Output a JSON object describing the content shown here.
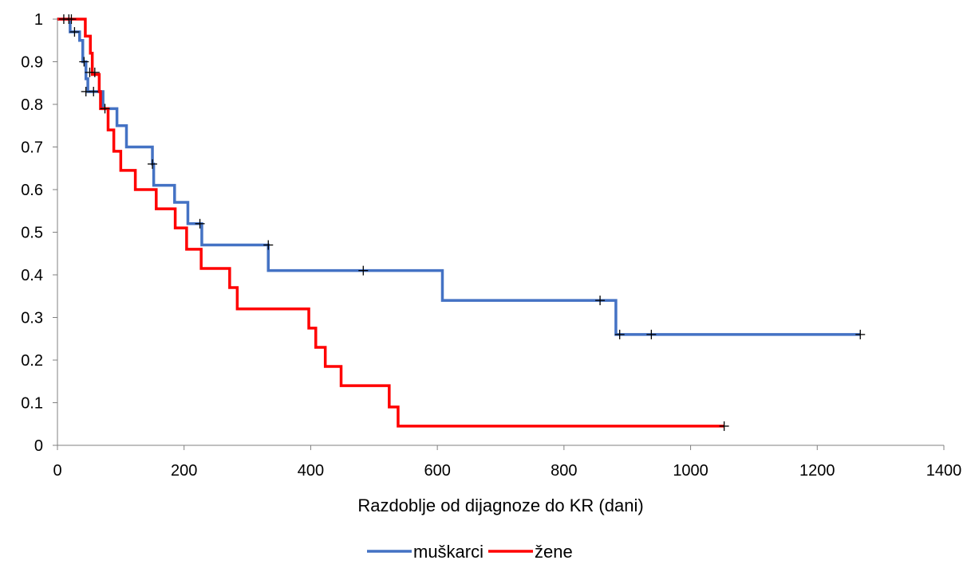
{
  "chart_data": {
    "type": "line",
    "step": true,
    "xlabel": "Razdoblje od dijagnoze do KR (dani)",
    "ylabel": "",
    "xlim": [
      0,
      1400
    ],
    "ylim": [
      0,
      1
    ],
    "xticks": [
      0,
      200,
      400,
      600,
      800,
      1000,
      1200,
      1400
    ],
    "yticks": [
      0,
      0.1,
      0.2,
      0.3,
      0.4,
      0.5,
      0.6,
      0.7,
      0.8,
      0.9,
      1
    ],
    "xtick_labels": [
      "0",
      "200",
      "400",
      "600",
      "800",
      "1000",
      "1200",
      "1400"
    ],
    "ytick_labels": [
      "0",
      "0.1",
      "0.2",
      "0.3",
      "0.4",
      "0.5",
      "0.6",
      "0.7",
      "0.8",
      "0.9",
      "1"
    ],
    "grid": false,
    "legend_position": "bottom",
    "series": [
      {
        "name": "muškarci",
        "color": "#4472C4",
        "steps": [
          [
            0,
            1
          ],
          [
            20,
            0.97
          ],
          [
            35,
            0.95
          ],
          [
            40,
            0.9
          ],
          [
            45,
            0.86
          ],
          [
            48,
            0.83
          ],
          [
            57,
            0.83
          ],
          [
            70,
            0.83
          ],
          [
            72,
            0.79
          ],
          [
            92,
            0.79
          ],
          [
            94,
            0.75
          ],
          [
            107,
            0.75
          ],
          [
            109,
            0.7
          ],
          [
            148,
            0.7
          ],
          [
            150,
            0.66
          ],
          [
            152,
            0.61
          ],
          [
            183,
            0.61
          ],
          [
            185,
            0.57
          ],
          [
            204,
            0.57
          ],
          [
            206,
            0.52
          ],
          [
            226,
            0.52
          ],
          [
            228,
            0.47
          ],
          [
            331,
            0.47
          ],
          [
            333,
            0.41
          ],
          [
            606,
            0.41
          ],
          [
            608,
            0.34
          ],
          [
            880,
            0.34
          ],
          [
            882,
            0.26
          ],
          [
            1268,
            0.26
          ]
        ],
        "censored": [
          [
            10,
            1
          ],
          [
            18,
            1
          ],
          [
            22,
            1
          ],
          [
            27,
            0.97
          ],
          [
            42,
            0.9
          ],
          [
            45,
            0.83
          ],
          [
            51,
            0.875
          ],
          [
            59,
            0.875
          ],
          [
            57,
            0.83
          ],
          [
            75,
            0.79
          ],
          [
            150,
            0.66
          ],
          [
            225,
            0.52
          ],
          [
            333,
            0.47
          ],
          [
            483,
            0.41
          ],
          [
            857,
            0.34
          ],
          [
            888,
            0.26
          ],
          [
            938,
            0.26
          ],
          [
            1268,
            0.26
          ]
        ]
      },
      {
        "name": "žene",
        "color": "#FF0000",
        "steps": [
          [
            0,
            1
          ],
          [
            42,
            1
          ],
          [
            44,
            0.96
          ],
          [
            50,
            0.96
          ],
          [
            52,
            0.92
          ],
          [
            55,
            0.87
          ],
          [
            64,
            0.87
          ],
          [
            66,
            0.83
          ],
          [
            68,
            0.79
          ],
          [
            78,
            0.79
          ],
          [
            80,
            0.74
          ],
          [
            87,
            0.74
          ],
          [
            89,
            0.69
          ],
          [
            98,
            0.69
          ],
          [
            100,
            0.645
          ],
          [
            121,
            0.645
          ],
          [
            123,
            0.6
          ],
          [
            154,
            0.6
          ],
          [
            156,
            0.555
          ],
          [
            184,
            0.555
          ],
          [
            186,
            0.51
          ],
          [
            202,
            0.51
          ],
          [
            204,
            0.46
          ],
          [
            225,
            0.46
          ],
          [
            227,
            0.415
          ],
          [
            270,
            0.415
          ],
          [
            272,
            0.37
          ],
          [
            282,
            0.37
          ],
          [
            284,
            0.32
          ],
          [
            395,
            0.32
          ],
          [
            397,
            0.275
          ],
          [
            406,
            0.275
          ],
          [
            408,
            0.23
          ],
          [
            421,
            0.23
          ],
          [
            423,
            0.185
          ],
          [
            446,
            0.185
          ],
          [
            448,
            0.14
          ],
          [
            522,
            0.14
          ],
          [
            524,
            0.09
          ],
          [
            536,
            0.09
          ],
          [
            538,
            0.045
          ],
          [
            1053,
            0.045
          ]
        ],
        "censored": [
          [
            1053,
            0.045
          ]
        ]
      }
    ]
  }
}
